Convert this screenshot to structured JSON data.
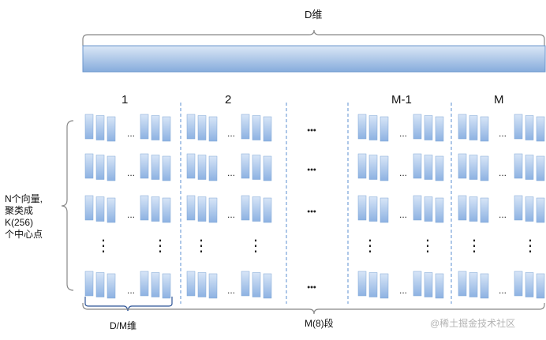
{
  "top_label": "D维",
  "segment_labels": [
    "1",
    "2",
    "M-1",
    "M"
  ],
  "left_label_lines": [
    "N个向量,",
    "聚类成",
    "K(256)",
    "个中心点"
  ],
  "bottom_left_label": "D/M维",
  "bottom_mid_label": "M(8)段",
  "ellipsis_h": "...",
  "ellipsis_mid": "•••",
  "ellipsis_v": "⋮",
  "watermark": "@稀土掘金技术社区",
  "colors": {
    "bar_top": "#dce8f7",
    "bar_bottom": "#8fb4e3",
    "brace_grey": "#888888",
    "brace_blue": "#2f5597",
    "separator": "#5b8fd1"
  }
}
